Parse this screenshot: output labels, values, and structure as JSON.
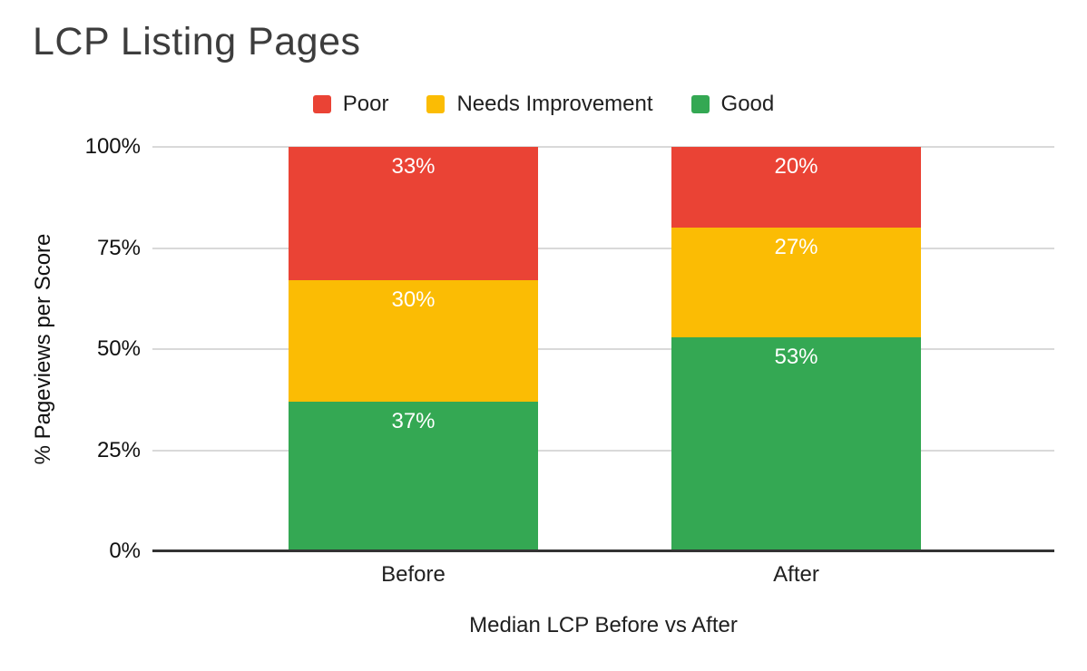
{
  "title": "LCP Listing Pages",
  "colors": {
    "poor": "#EA4335",
    "needs_improvement": "#FBBC04",
    "good": "#34A853",
    "gridline": "#D9D9D9",
    "axis_line": "#333333",
    "title_text": "#3D3D3D",
    "label_text": "#1F1F1F",
    "bar_label_text": "#FFFFFF",
    "background": "#FFFFFF"
  },
  "legend": {
    "position": "top",
    "entries": [
      {
        "label": "Poor",
        "color": "#EA4335"
      },
      {
        "label": "Needs Improvement",
        "color": "#FBBC04"
      },
      {
        "label": "Good",
        "color": "#34A853"
      }
    ]
  },
  "chart_data": {
    "type": "bar",
    "stacked": true,
    "title": "LCP Listing Pages",
    "categories": [
      "Before",
      "After"
    ],
    "series": [
      {
        "name": "Poor",
        "color": "#EA4335",
        "values": [
          33,
          20
        ]
      },
      {
        "name": "Needs Improvement",
        "color": "#FBBC04",
        "values": [
          30,
          27
        ]
      },
      {
        "name": "Good",
        "color": "#34A853",
        "values": [
          37,
          53
        ]
      }
    ],
    "stack_order_bottom_to_top": [
      "Good",
      "Needs Improvement",
      "Poor"
    ],
    "data_labels": [
      "33%",
      "30%",
      "37%",
      "20%",
      "27%",
      "53%"
    ],
    "value_suffix": "%",
    "xlabel": "Median LCP Before vs After",
    "ylabel": "% Pageviews per Score",
    "ylim": [
      0,
      100
    ],
    "yticks": [
      0,
      25,
      50,
      75,
      100
    ],
    "ytick_labels": [
      "0%",
      "25%",
      "50%",
      "75%",
      "100%"
    ],
    "grid": true,
    "legend_position": "top"
  }
}
